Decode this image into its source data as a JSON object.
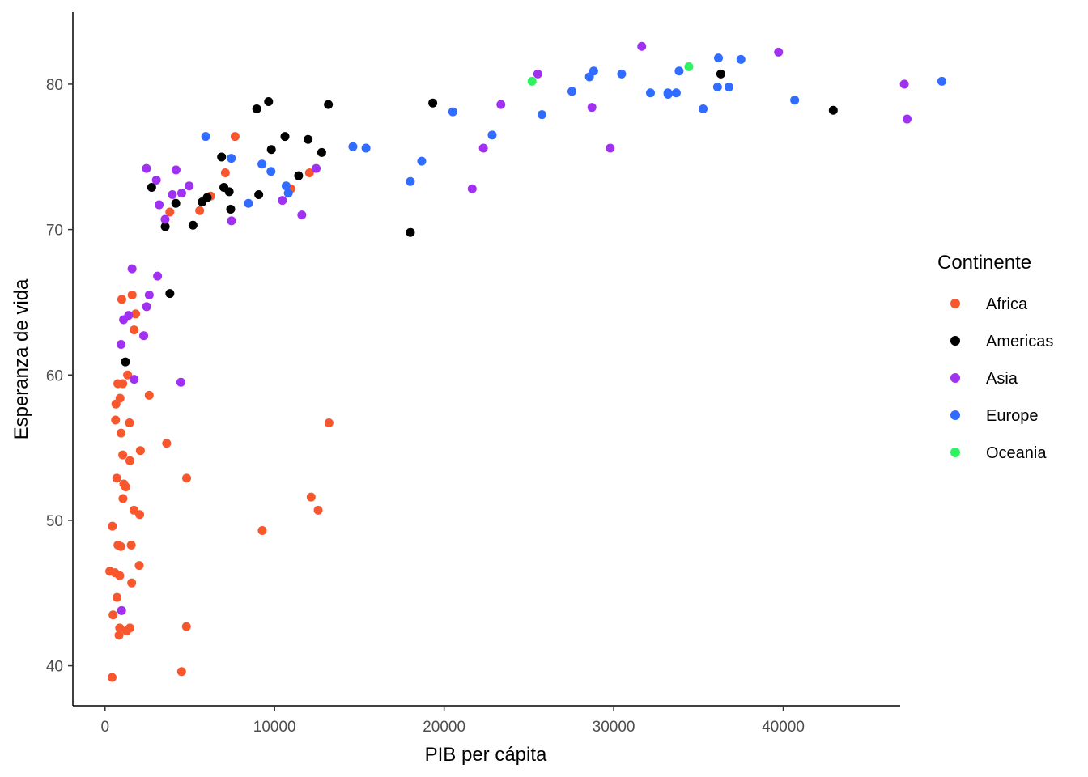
{
  "chart_data": {
    "type": "scatter",
    "title": "",
    "xlabel": "PIB per cápita",
    "ylabel": "Esperanza de vida",
    "xlim": [
      -1900,
      46900
    ],
    "ylim": [
      37.25,
      84.95
    ],
    "x_ticks": [
      0,
      10000,
      20000,
      30000,
      40000
    ],
    "y_ticks": [
      40,
      50,
      60,
      70,
      80
    ],
    "grid": false,
    "legend": {
      "title": "Continente",
      "placement": "right"
    },
    "series": [
      {
        "name": "Africa",
        "color": "#f8572e",
        "points": [
          [
            6223,
            72.3
          ],
          [
            4797,
            42.7
          ],
          [
            1441,
            56.7
          ],
          [
            12570,
            50.7
          ],
          [
            1217,
            52.3
          ],
          [
            430,
            49.6
          ],
          [
            2042,
            50.4
          ],
          [
            706,
            44.7
          ],
          [
            1704,
            50.7
          ],
          [
            986,
            65.2
          ],
          [
            277,
            46.5
          ],
          [
            3632,
            55.3
          ],
          [
            1544,
            48.3
          ],
          [
            2082,
            54.8
          ],
          [
            5581,
            71.3
          ],
          [
            12154,
            51.6
          ],
          [
            641,
            58.0
          ],
          [
            691,
            52.9
          ],
          [
            13206,
            56.7
          ],
          [
            753,
            59.4
          ],
          [
            1327,
            60.0
          ],
          [
            943,
            56.0
          ],
          [
            580,
            46.4
          ],
          [
            1464,
            54.1
          ],
          [
            1463,
            42.6
          ],
          [
            1570,
            45.7
          ],
          [
            415,
            39.2
          ],
          [
            12057,
            73.9
          ],
          [
            1045,
            59.4
          ],
          [
            759,
            48.3
          ],
          [
            1042,
            54.5
          ],
          [
            1803,
            64.2
          ],
          [
            10957,
            72.8
          ],
          [
            3820,
            71.2
          ],
          [
            824,
            42.1
          ],
          [
            4811,
            52.9
          ],
          [
            620,
            56.9
          ],
          [
            2014,
            46.9
          ],
          [
            7670,
            76.4
          ],
          [
            863,
            46.2
          ],
          [
            1598,
            65.5
          ],
          [
            1712,
            63.1
          ],
          [
            862,
            42.6
          ],
          [
            926,
            48.2
          ],
          [
            9270,
            49.3
          ],
          [
            2602,
            58.6
          ],
          [
            4513,
            39.6
          ],
          [
            1107,
            52.5
          ],
          [
            883,
            58.4
          ],
          [
            7093,
            73.9
          ],
          [
            1056,
            51.5
          ],
          [
            1271,
            42.4
          ],
          [
            470,
            43.5
          ]
        ]
      },
      {
        "name": "Americas",
        "color": "#000000",
        "points": [
          [
            12779,
            75.3
          ],
          [
            3822,
            65.6
          ],
          [
            9066,
            72.4
          ],
          [
            36319,
            80.7
          ],
          [
            13172,
            78.6
          ],
          [
            7007,
            72.9
          ],
          [
            9645,
            78.8
          ],
          [
            8948,
            78.3
          ],
          [
            6025,
            72.2
          ],
          [
            6873,
            74.99
          ],
          [
            5728,
            71.9
          ],
          [
            5186,
            70.3
          ],
          [
            1202,
            60.9
          ],
          [
            3548,
            70.2
          ],
          [
            7321,
            72.6
          ],
          [
            11978,
            76.2
          ],
          [
            2749,
            72.9
          ],
          [
            9809,
            75.5
          ],
          [
            4173,
            71.8
          ],
          [
            7409,
            71.4
          ],
          [
            19329,
            78.7
          ],
          [
            18009,
            69.8
          ],
          [
            42952,
            78.2
          ],
          [
            10611,
            76.4
          ],
          [
            11416,
            73.7
          ]
        ]
      },
      {
        "name": "Asia",
        "color": "#a131f0",
        "points": [
          [
            975,
            43.8
          ],
          [
            29796,
            75.6
          ],
          [
            1391,
            64.1
          ],
          [
            1714,
            59.7
          ],
          [
            4959,
            73.0
          ],
          [
            39725,
            82.2
          ],
          [
            2452,
            64.7
          ],
          [
            3541,
            70.7
          ],
          [
            11606,
            71.0
          ],
          [
            4471,
            59.5
          ],
          [
            25523,
            80.7
          ],
          [
            31656,
            82.6
          ],
          [
            4519,
            72.5
          ],
          [
            1593,
            67.3
          ],
          [
            23348,
            78.6
          ],
          [
            47307,
            77.6
          ],
          [
            10461,
            72.0
          ],
          [
            12452,
            74.2
          ],
          [
            3096,
            66.8
          ],
          [
            944,
            62.1
          ],
          [
            1091,
            63.8
          ],
          [
            22316,
            75.6
          ],
          [
            2606,
            65.5
          ],
          [
            3190,
            71.7
          ],
          [
            21655,
            72.8
          ],
          [
            47143,
            80.0
          ],
          [
            3970,
            72.4
          ],
          [
            4185,
            74.1
          ],
          [
            28718,
            78.4
          ],
          [
            7458,
            70.6
          ],
          [
            2442,
            74.2
          ],
          [
            3025,
            73.4
          ],
          [
            2281,
            62.7
          ]
        ]
      },
      {
        "name": "Europe",
        "color": "#2f6cff",
        "points": [
          [
            5937,
            76.4
          ],
          [
            36126,
            79.8
          ],
          [
            33693,
            79.4
          ],
          [
            7446,
            74.9
          ],
          [
            10681,
            73.0
          ],
          [
            14619,
            75.7
          ],
          [
            22833,
            76.5
          ],
          [
            35278,
            78.3
          ],
          [
            33207,
            79.3
          ],
          [
            30470,
            80.7
          ],
          [
            32170,
            79.4
          ],
          [
            27538,
            79.5
          ],
          [
            18008,
            73.3
          ],
          [
            36181,
            81.8
          ],
          [
            40676,
            78.9
          ],
          [
            28570,
            80.5
          ],
          [
            9254,
            74.5
          ],
          [
            36798,
            79.8
          ],
          [
            49357,
            80.2
          ],
          [
            15390,
            75.6
          ],
          [
            20510,
            78.1
          ],
          [
            10808,
            72.5
          ],
          [
            9787,
            74.0
          ],
          [
            18678,
            74.7
          ],
          [
            25768,
            77.9
          ],
          [
            28821,
            80.9
          ],
          [
            33860,
            80.9
          ],
          [
            37506,
            81.7
          ],
          [
            8458,
            71.8
          ],
          [
            33203,
            79.4
          ]
        ]
      },
      {
        "name": "Oceania",
        "color": "#2ef25f",
        "points": [
          [
            34435,
            81.2
          ],
          [
            25185,
            80.2
          ]
        ]
      }
    ]
  }
}
